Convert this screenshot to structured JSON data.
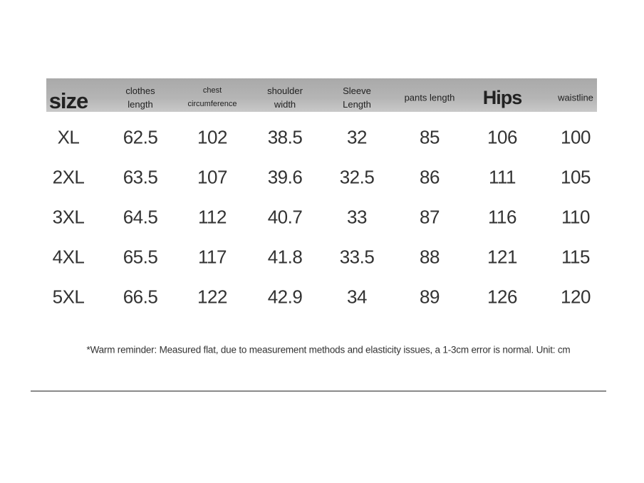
{
  "table": {
    "header": [
      [
        "size"
      ],
      [
        "clothes",
        "length"
      ],
      [
        "chest",
        "circumference"
      ],
      [
        "shoulder",
        "width"
      ],
      [
        "Sleeve",
        "Length"
      ],
      [
        "pants length"
      ],
      [
        "Hips"
      ],
      [
        "waistline"
      ]
    ],
    "rows": [
      [
        "XL",
        "62.5",
        "102",
        "38.5",
        "32",
        "85",
        "106",
        "100"
      ],
      [
        "2XL",
        "63.5",
        "107",
        "39.6",
        "32.5",
        "86",
        "111",
        "105"
      ],
      [
        "3XL",
        "64.5",
        "112",
        "40.7",
        "33",
        "87",
        "116",
        "110"
      ],
      [
        "4XL",
        "65.5",
        "117",
        "41.8",
        "33.5",
        "88",
        "121",
        "115"
      ],
      [
        "5XL",
        "66.5",
        "122",
        "42.9",
        "34",
        "89",
        "126",
        "120"
      ]
    ]
  },
  "note": "*Warm reminder: Measured flat, due to measurement methods and elasticity issues, a 1-3cm error is normal. Unit: cm"
}
